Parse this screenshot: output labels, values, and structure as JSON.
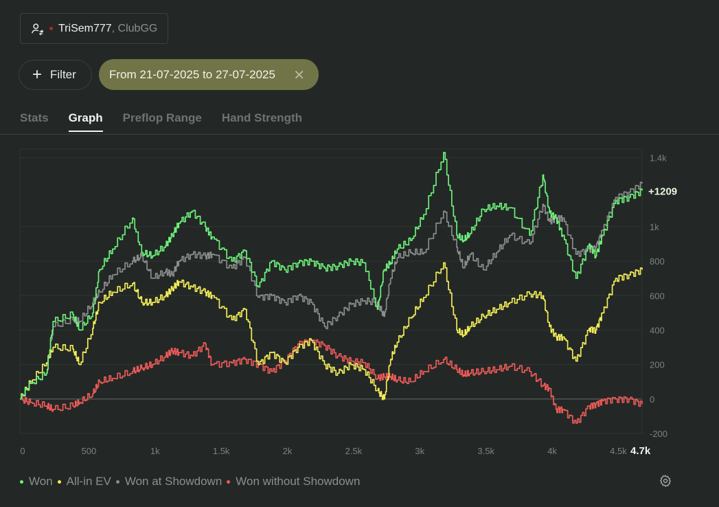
{
  "player": {
    "name": "TriSem777",
    "club": ", ClubGG"
  },
  "filter": {
    "label": "Filter"
  },
  "date_range": {
    "label": "From 21-07-2025 to 27-07-2025"
  },
  "tabs": [
    {
      "label": "Stats"
    },
    {
      "label": "Graph"
    },
    {
      "label": "Preflop Range"
    },
    {
      "label": "Hand Strength"
    }
  ],
  "colors": {
    "won": "#6ef07a",
    "allin_ev": "#f3ec58",
    "showdown": "#8a8d8c",
    "no_showdown": "#ec5a58",
    "status_dot": "#b3262a",
    "chip_bg": "#707447"
  },
  "chart_data": {
    "type": "line",
    "title": "",
    "xlabel": "",
    "ylabel": "",
    "x_unit": "hands",
    "xlim": [
      0,
      4700
    ],
    "ylim": [
      -200,
      1450
    ],
    "x_ticks": [
      {
        "value": 0,
        "label": "0"
      },
      {
        "value": 500,
        "label": "500"
      },
      {
        "value": 1000,
        "label": "1k"
      },
      {
        "value": 1500,
        "label": "1.5k"
      },
      {
        "value": 2000,
        "label": "2k"
      },
      {
        "value": 2500,
        "label": "2.5k"
      },
      {
        "value": 3000,
        "label": "3k"
      },
      {
        "value": 3500,
        "label": "3.5k"
      },
      {
        "value": 4000,
        "label": "4k"
      },
      {
        "value": 4500,
        "label": "4.5k"
      }
    ],
    "x_end_label": "4.7k",
    "y_ticks": [
      {
        "value": 1400,
        "label": "1.4k"
      },
      {
        "value": 1000,
        "label": "1k"
      },
      {
        "value": 800,
        "label": "800"
      },
      {
        "value": 600,
        "label": "600"
      },
      {
        "value": 400,
        "label": "400"
      },
      {
        "value": 200,
        "label": "200"
      },
      {
        "value": 0,
        "label": "0"
      },
      {
        "value": -200,
        "label": "-200"
      }
    ],
    "end_label": "+1209",
    "grid": true,
    "legend_position": "bottom-left",
    "series": [
      {
        "name": "Won",
        "color": "#6ef07a",
        "x": [
          0,
          80,
          200,
          250,
          400,
          450,
          550,
          600,
          700,
          850,
          920,
          1000,
          1100,
          1150,
          1200,
          1300,
          1400,
          1450,
          1600,
          1700,
          1800,
          1900,
          2000,
          2100,
          2200,
          2300,
          2400,
          2500,
          2600,
          2700,
          2750,
          2800,
          2850,
          2950,
          3050,
          3200,
          3300,
          3350,
          3400,
          3500,
          3600,
          3700,
          3850,
          3950,
          4000,
          4050,
          4100,
          4200,
          4300,
          4350,
          4400,
          4500,
          4600,
          4700
        ],
        "y": [
          0,
          90,
          150,
          450,
          490,
          400,
          500,
          750,
          870,
          1050,
          850,
          830,
          890,
          950,
          1020,
          1090,
          1000,
          940,
          800,
          860,
          650,
          800,
          750,
          790,
          800,
          760,
          770,
          800,
          790,
          520,
          750,
          790,
          870,
          920,
          1070,
          1430,
          950,
          920,
          960,
          1100,
          1120,
          1110,
          950,
          1300,
          1080,
          1050,
          950,
          700,
          900,
          830,
          950,
          1150,
          1170,
          1209
        ]
      },
      {
        "name": "All-in EV",
        "color": "#f3ec58",
        "x": [
          0,
          80,
          200,
          250,
          400,
          450,
          550,
          600,
          700,
          850,
          920,
          1000,
          1100,
          1150,
          1200,
          1300,
          1400,
          1450,
          1600,
          1700,
          1800,
          1900,
          2000,
          2100,
          2200,
          2300,
          2400,
          2500,
          2600,
          2700,
          2750,
          2800,
          2850,
          2950,
          3050,
          3200,
          3300,
          3350,
          3400,
          3500,
          3600,
          3700,
          3850,
          3950,
          4000,
          4050,
          4100,
          4200,
          4300,
          4350,
          4400,
          4500,
          4600,
          4700
        ],
        "y": [
          0,
          100,
          210,
          300,
          290,
          200,
          410,
          560,
          620,
          670,
          560,
          560,
          600,
          640,
          680,
          650,
          620,
          600,
          460,
          520,
          200,
          270,
          210,
          300,
          340,
          200,
          150,
          200,
          170,
          50,
          0,
          230,
          330,
          470,
          590,
          790,
          400,
          370,
          420,
          480,
          520,
          560,
          610,
          600,
          420,
          360,
          360,
          220,
          410,
          400,
          500,
          700,
          720,
          750
        ]
      },
      {
        "name": "Won at Showdown",
        "color": "#8a8d8c",
        "x": [
          0,
          80,
          200,
          250,
          400,
          450,
          550,
          600,
          700,
          850,
          920,
          1000,
          1100,
          1150,
          1200,
          1300,
          1400,
          1450,
          1600,
          1700,
          1800,
          1900,
          2000,
          2100,
          2200,
          2300,
          2400,
          2500,
          2600,
          2700,
          2750,
          2800,
          2850,
          2950,
          3050,
          3200,
          3300,
          3350,
          3400,
          3500,
          3600,
          3700,
          3850,
          3950,
          4000,
          4050,
          4100,
          4200,
          4300,
          4350,
          4400,
          4500,
          4600,
          4700
        ],
        "y": [
          0,
          90,
          150,
          420,
          460,
          450,
          560,
          620,
          720,
          800,
          830,
          700,
          740,
          720,
          800,
          840,
          830,
          840,
          760,
          820,
          590,
          600,
          560,
          600,
          560,
          420,
          480,
          550,
          570,
          560,
          480,
          700,
          820,
          850,
          850,
          1090,
          880,
          760,
          840,
          750,
          850,
          950,
          900,
          1130,
          1030,
          1050,
          1050,
          840,
          870,
          880,
          980,
          1170,
          1200,
          1250
        ]
      },
      {
        "name": "Won without Showdown",
        "color": "#ec5a58",
        "x": [
          0,
          80,
          200,
          250,
          400,
          450,
          550,
          600,
          700,
          850,
          920,
          1000,
          1100,
          1150,
          1200,
          1300,
          1400,
          1450,
          1600,
          1700,
          1800,
          1900,
          2000,
          2100,
          2200,
          2300,
          2400,
          2500,
          2600,
          2700,
          2750,
          2800,
          2850,
          2950,
          3050,
          3200,
          3300,
          3350,
          3400,
          3500,
          3600,
          3700,
          3850,
          3950,
          4000,
          4050,
          4100,
          4200,
          4300,
          4350,
          4400,
          4500,
          4600,
          4700
        ],
        "y": [
          0,
          -20,
          -40,
          -60,
          -40,
          -20,
          30,
          100,
          120,
          160,
          180,
          200,
          250,
          280,
          270,
          250,
          320,
          200,
          210,
          230,
          200,
          160,
          220,
          320,
          340,
          310,
          250,
          220,
          210,
          120,
          130,
          130,
          110,
          100,
          160,
          230,
          170,
          140,
          150,
          160,
          170,
          190,
          160,
          80,
          60,
          -60,
          -60,
          -140,
          -40,
          -30,
          -10,
          0,
          0,
          -30
        ]
      }
    ]
  }
}
